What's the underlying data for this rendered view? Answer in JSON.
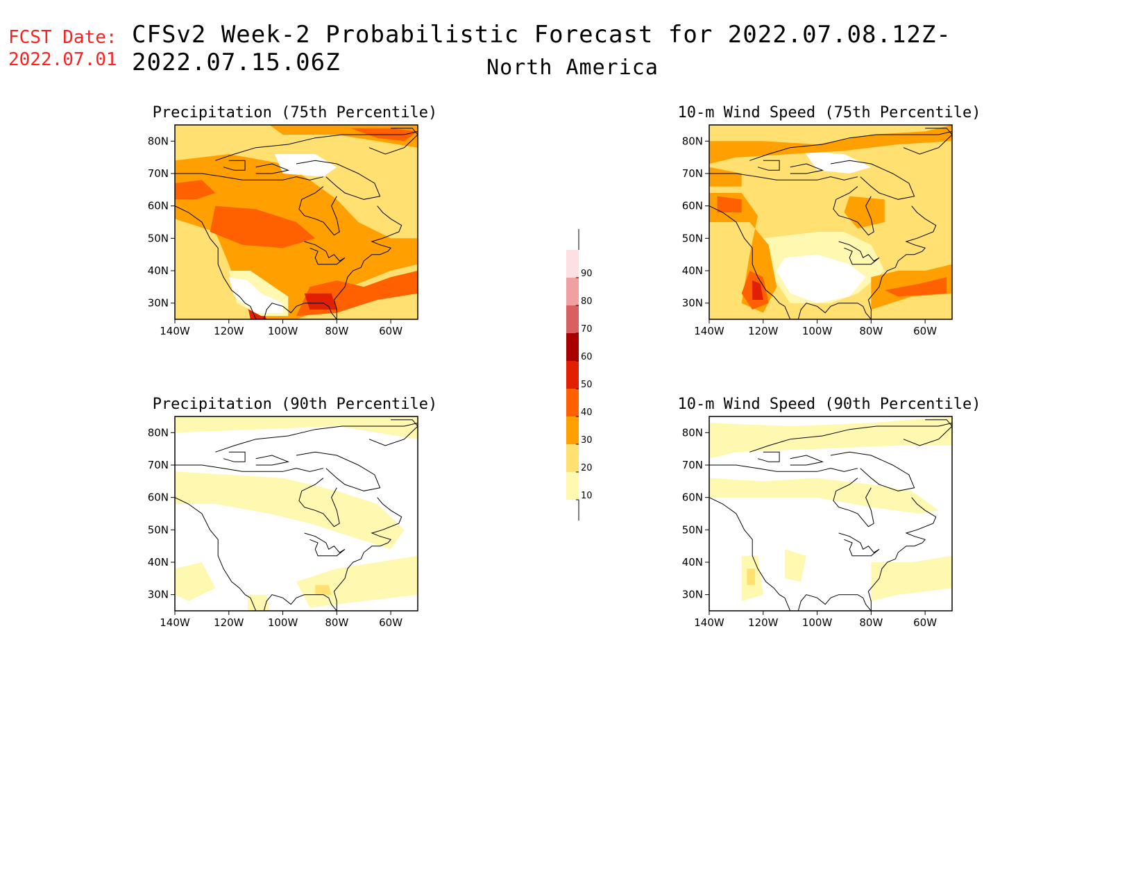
{
  "header": {
    "fcst_label": "FCST Date:",
    "fcst_date": "2022.07.01",
    "title": "CFSv2 Week-2 Probabilistic Forecast for 2022.07.08.12Z-2022.07.15.06Z",
    "subtitle": "North America"
  },
  "panels": [
    {
      "title": "Precipitation (75th Percentile)",
      "variable": "precip75"
    },
    {
      "title": "10-m Wind Speed (75th Percentile)",
      "variable": "wind75"
    },
    {
      "title": "Precipitation (90th Percentile)",
      "variable": "precip90"
    },
    {
      "title": "10-m Wind Speed (90th Percentile)",
      "variable": "wind90"
    }
  ],
  "lat_ticks": [
    "80N",
    "70N",
    "60N",
    "50N",
    "40N",
    "30N"
  ],
  "lon_ticks": [
    "140W",
    "120W",
    "100W",
    "80W",
    "60W"
  ],
  "colorbar": {
    "levels": [
      "90",
      "80",
      "70",
      "60",
      "50",
      "40",
      "30",
      "20",
      "10"
    ],
    "colors": [
      "#fde0e0",
      "#f0a0a0",
      "#d86060",
      "#a80000",
      "#e02000",
      "#ff6000",
      "#ffa000",
      "#ffe070",
      "#fff8b0"
    ]
  }
}
